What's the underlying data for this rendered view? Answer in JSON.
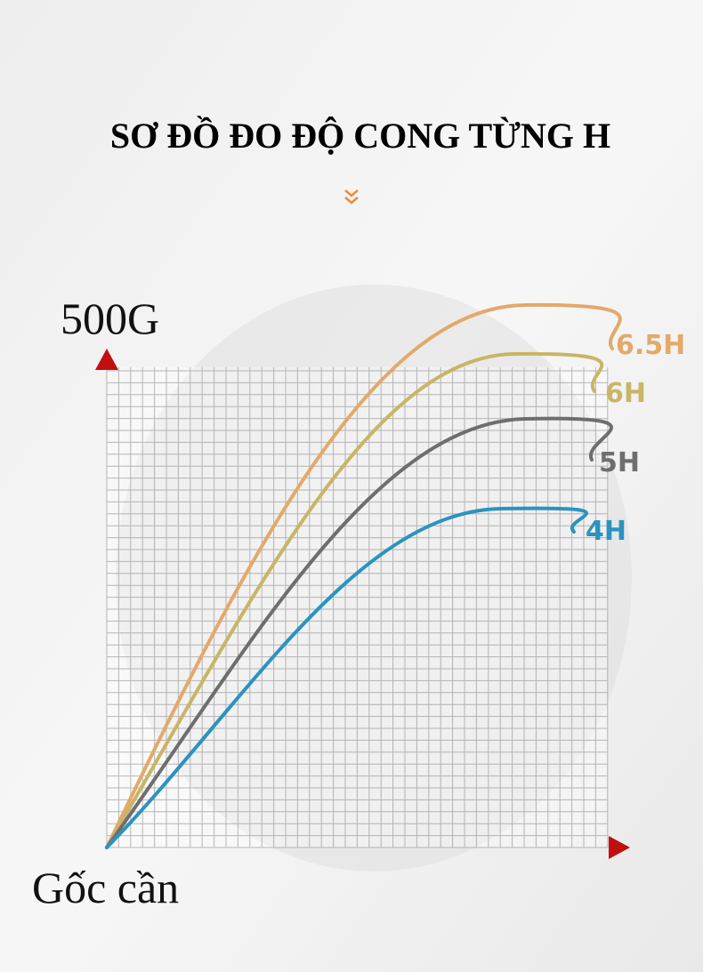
{
  "header": {
    "title": "SƠ ĐỒ ĐO ĐỘ CONG TỪNG H"
  },
  "diagram": {
    "y_axis_label": "500G",
    "x_axis_label": "Gốc cần",
    "curves": [
      {
        "label": "6.5H"
      },
      {
        "label": "6H"
      },
      {
        "label": "5H"
      },
      {
        "label": "4H"
      }
    ]
  }
}
